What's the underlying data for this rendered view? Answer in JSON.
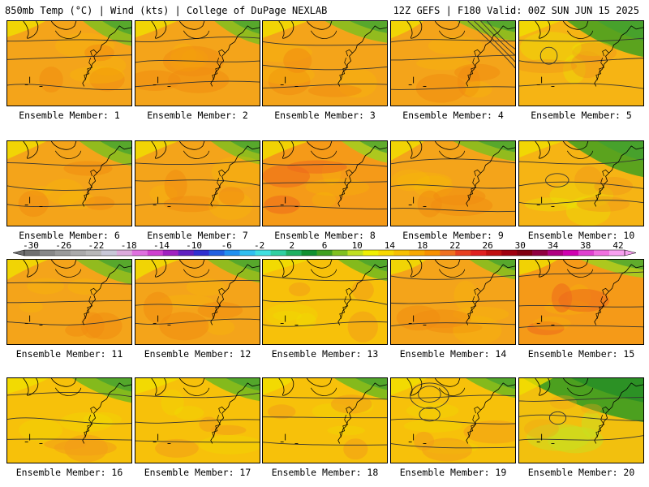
{
  "header": {
    "left": "850mb Temp (°C) | Wind (kts) | College of DuPage NEXLAB",
    "right": "12Z GEFS | F180 Valid: 00Z SUN JUN 15 2025"
  },
  "caption_prefix": "Ensemble Member: ",
  "members": [
    {
      "label": "Ensemble Member: 1",
      "style": "warm"
    },
    {
      "label": "Ensemble Member: 2",
      "style": "warm"
    },
    {
      "label": "Ensemble Member: 3",
      "style": "warm"
    },
    {
      "label": "Ensemble Member: 4",
      "style": "warm"
    },
    {
      "label": "Ensemble Member: 5",
      "style": "cool"
    },
    {
      "label": "Ensemble Member: 6",
      "style": "warm"
    },
    {
      "label": "Ensemble Member: 7",
      "style": "warm"
    },
    {
      "label": "Ensemble Member: 8",
      "style": "hot"
    },
    {
      "label": "Ensemble Member: 9",
      "style": "warm"
    },
    {
      "label": "Ensemble Member: 10",
      "style": "cool"
    },
    {
      "label": "Ensemble Member: 11",
      "style": "warm"
    },
    {
      "label": "Ensemble Member: 12",
      "style": "warm"
    },
    {
      "label": "Ensemble Member: 13",
      "style": "yellow"
    },
    {
      "label": "Ensemble Member: 14",
      "style": "warm"
    },
    {
      "label": "Ensemble Member: 15",
      "style": "hot"
    },
    {
      "label": "Ensemble Member: 16",
      "style": "yellow"
    },
    {
      "label": "Ensemble Member: 17",
      "style": "yellow"
    },
    {
      "label": "Ensemble Member: 18",
      "style": "yellow"
    },
    {
      "label": "Ensemble Member: 19",
      "style": "yellow"
    },
    {
      "label": "Ensemble Member: 20",
      "style": "green"
    }
  ],
  "colorbar": {
    "ticks": [
      "-30",
      "-26",
      "-22",
      "-18",
      "-14",
      "-10",
      "-6",
      "-2",
      "2",
      "6",
      "10",
      "14",
      "18",
      "22",
      "26",
      "30",
      "34",
      "38",
      "42"
    ],
    "colors": [
      "#707070",
      "#888888",
      "#9a9a9a",
      "#aaaaaa",
      "#b8b8b8",
      "#c8c8d8",
      "#dcaadc",
      "#e070e0",
      "#d040d0",
      "#a020c0",
      "#6020c0",
      "#3030d0",
      "#2060e0",
      "#2090f0",
      "#30c0f0",
      "#40e0e0",
      "#30d0a0",
      "#20b060",
      "#109030",
      "#40a020",
      "#80c020",
      "#c0e020",
      "#f0f000",
      "#f8d800",
      "#f8c000",
      "#f8a800",
      "#f89000",
      "#f07020",
      "#e84020",
      "#e02020",
      "#c01010",
      "#a00010",
      "#800010",
      "#900040",
      "#b00080",
      "#d000b0",
      "#e040d0",
      "#f070e0",
      "#f8a0f0"
    ]
  }
}
